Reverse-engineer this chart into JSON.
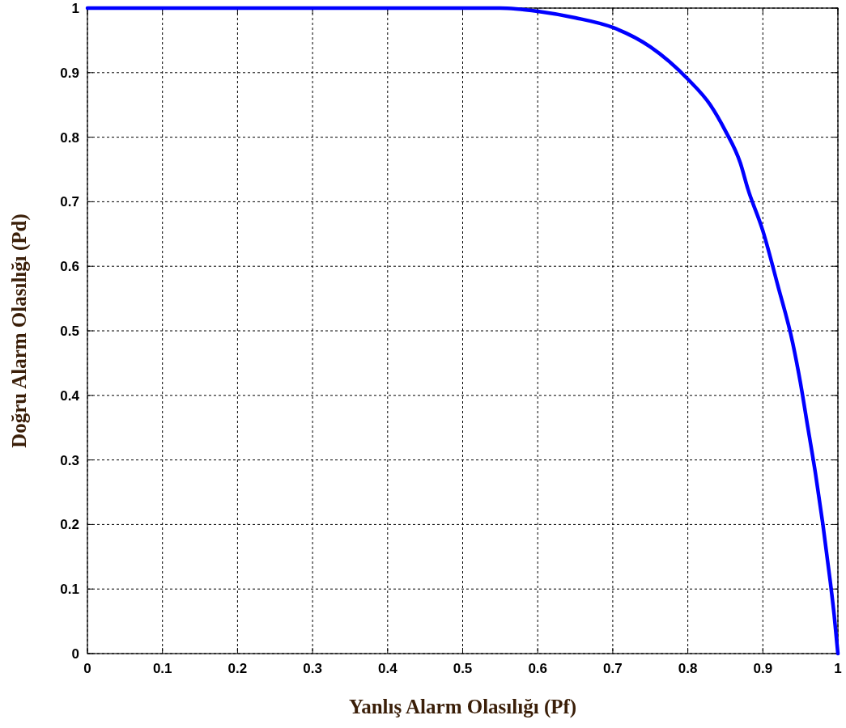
{
  "chart_data": {
    "type": "line",
    "xlabel": "Yanlış Alarm Olasılığı (Pf)",
    "ylabel": "Doğru Alarm Olasılığı (Pd)",
    "xlim": [
      0,
      1
    ],
    "ylim": [
      0,
      1
    ],
    "xticks": [
      0,
      0.1,
      0.2,
      0.3,
      0.4,
      0.5,
      0.6,
      0.7,
      0.8,
      0.9,
      1
    ],
    "yticks": [
      0,
      0.1,
      0.2,
      0.3,
      0.4,
      0.5,
      0.6,
      0.7,
      0.8,
      0.9,
      1
    ],
    "grid": true,
    "line_style": "solid",
    "series": [
      {
        "color": "#0000ff",
        "x": [
          0,
          0.1,
          0.2,
          0.3,
          0.4,
          0.5,
          0.55,
          0.6,
          0.65,
          0.7,
          0.75,
          0.8,
          0.83,
          0.85,
          0.87,
          0.88,
          0.9,
          0.92,
          0.94,
          0.95,
          0.96,
          0.97,
          0.98,
          0.99,
          0.995,
          1
        ],
        "values": [
          1,
          1,
          1,
          1,
          1,
          1,
          1,
          0.995,
          0.985,
          0.97,
          0.94,
          0.89,
          0.85,
          0.81,
          0.76,
          0.72,
          0.655,
          0.57,
          0.48,
          0.42,
          0.35,
          0.28,
          0.2,
          0.11,
          0.06,
          0
        ]
      }
    ]
  }
}
